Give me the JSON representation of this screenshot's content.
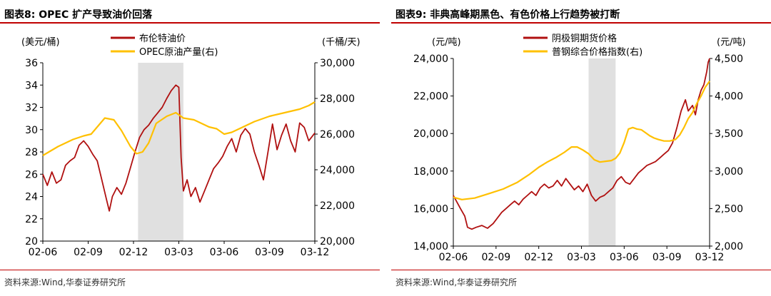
{
  "colors": {
    "accent": "#c00000",
    "series_dark_red": "#b01010",
    "series_gold": "#ffc000",
    "shade": "#e0e0e0"
  },
  "panels": [
    {
      "title": "图表8:  OPEC 扩产导致油价回落",
      "source": "资料来源:Wind,华泰证券研究所"
    },
    {
      "title": "图表9:  非典高峰期黑色、有色价格上行趋势被打断",
      "source": "资料来源:Wind,华泰证券研究所"
    }
  ],
  "chart_data": [
    {
      "type": "line",
      "ylabel_left": "(美元/桶)",
      "ylabel_right": "(千桶/天)",
      "x_ticks": [
        "02-06",
        "02-09",
        "02-12",
        "03-03",
        "03-06",
        "03-09",
        "03-12"
      ],
      "x_range": [
        0,
        18
      ],
      "y_left": {
        "min": 20,
        "max": 36,
        "ticks": [
          "20",
          "22",
          "24",
          "26",
          "28",
          "30",
          "32",
          "34",
          "36"
        ],
        "tick_values": [
          20,
          22,
          24,
          26,
          28,
          30,
          32,
          34,
          36
        ]
      },
      "y_right": {
        "min": 20000,
        "max": 30000,
        "ticks": [
          "20,000",
          "22,000",
          "24,000",
          "26,000",
          "28,000",
          "30,000"
        ],
        "tick_values": [
          20000,
          22000,
          24000,
          26000,
          28000,
          30000
        ]
      },
      "shade": [
        6.3,
        9.3
      ],
      "legend_position": "top-center",
      "series": [
        {
          "name": "布伦特油价",
          "axis": "left",
          "color": "#b01010",
          "points": [
            [
              0,
              26.0
            ],
            [
              0.3,
              25.0
            ],
            [
              0.6,
              26.2
            ],
            [
              0.9,
              25.2
            ],
            [
              1.2,
              25.5
            ],
            [
              1.5,
              26.8
            ],
            [
              1.8,
              27.2
            ],
            [
              2.1,
              27.5
            ],
            [
              2.4,
              28.6
            ],
            [
              2.7,
              29.0
            ],
            [
              3.0,
              28.5
            ],
            [
              3.3,
              27.8
            ],
            [
              3.6,
              27.2
            ],
            [
              3.9,
              25.5
            ],
            [
              4.2,
              23.8
            ],
            [
              4.4,
              22.7
            ],
            [
              4.6,
              24.0
            ],
            [
              4.9,
              24.8
            ],
            [
              5.2,
              24.2
            ],
            [
              5.5,
              25.2
            ],
            [
              5.8,
              26.6
            ],
            [
              6.1,
              28.0
            ],
            [
              6.4,
              29.3
            ],
            [
              6.7,
              30.0
            ],
            [
              7.0,
              30.4
            ],
            [
              7.3,
              31.0
            ],
            [
              7.6,
              31.5
            ],
            [
              7.9,
              32.0
            ],
            [
              8.2,
              32.8
            ],
            [
              8.5,
              33.5
            ],
            [
              8.8,
              34.0
            ],
            [
              9.0,
              33.8
            ],
            [
              9.15,
              27.5
            ],
            [
              9.3,
              24.5
            ],
            [
              9.55,
              25.5
            ],
            [
              9.8,
              24.0
            ],
            [
              10.1,
              24.8
            ],
            [
              10.4,
              23.5
            ],
            [
              10.7,
              24.5
            ],
            [
              11.0,
              25.5
            ],
            [
              11.3,
              26.5
            ],
            [
              11.6,
              27.0
            ],
            [
              11.9,
              27.6
            ],
            [
              12.2,
              28.5
            ],
            [
              12.5,
              29.2
            ],
            [
              12.8,
              28.0
            ],
            [
              13.1,
              29.5
            ],
            [
              13.4,
              30.1
            ],
            [
              13.7,
              29.6
            ],
            [
              14.0,
              28.0
            ],
            [
              14.3,
              26.8
            ],
            [
              14.6,
              25.5
            ],
            [
              14.9,
              28.0
            ],
            [
              15.2,
              30.5
            ],
            [
              15.5,
              28.2
            ],
            [
              15.8,
              29.5
            ],
            [
              16.1,
              30.5
            ],
            [
              16.4,
              29.0
            ],
            [
              16.7,
              28.0
            ],
            [
              17.0,
              30.6
            ],
            [
              17.3,
              30.2
            ],
            [
              17.6,
              29.0
            ],
            [
              18.0,
              29.7
            ]
          ]
        },
        {
          "name": "OPEC原油产量(右)",
          "axis": "right",
          "color": "#ffc000",
          "points": [
            [
              0,
              24800
            ],
            [
              1,
              25300
            ],
            [
              2,
              25700
            ],
            [
              2.7,
              25900
            ],
            [
              3.2,
              26000
            ],
            [
              4.1,
              26900
            ],
            [
              4.7,
              26800
            ],
            [
              5.2,
              26200
            ],
            [
              5.8,
              25300
            ],
            [
              6.2,
              24900
            ],
            [
              6.6,
              25000
            ],
            [
              7.0,
              25500
            ],
            [
              7.5,
              26600
            ],
            [
              8.2,
              27000
            ],
            [
              8.8,
              27200
            ],
            [
              9.3,
              26900
            ],
            [
              10.0,
              26800
            ],
            [
              10.5,
              26600
            ],
            [
              11.0,
              26400
            ],
            [
              11.5,
              26300
            ],
            [
              12.0,
              26000
            ],
            [
              12.5,
              26100
            ],
            [
              13.0,
              26300
            ],
            [
              14.0,
              26700
            ],
            [
              15.0,
              27000
            ],
            [
              16.0,
              27200
            ],
            [
              17.0,
              27400
            ],
            [
              17.6,
              27600
            ],
            [
              18.0,
              27800
            ]
          ]
        }
      ]
    },
    {
      "type": "line",
      "ylabel_left": "(元/吨)",
      "ylabel_right": "(元/吨)",
      "x_ticks": [
        "02-06",
        "02-09",
        "02-12",
        "03-03",
        "03-06",
        "03-09",
        "03-12"
      ],
      "x_range": [
        0,
        18
      ],
      "y_left": {
        "min": 14000,
        "max": 24000,
        "ticks": [
          "14,000",
          "16,000",
          "18,000",
          "20,000",
          "22,000",
          "24,000"
        ],
        "tick_values": [
          14000,
          16000,
          18000,
          20000,
          22000,
          24000
        ]
      },
      "y_right": {
        "min": 2000,
        "max": 4500,
        "ticks": [
          "2,000",
          "2,500",
          "3,000",
          "3,500",
          "4,000",
          "4,500"
        ],
        "tick_values": [
          2000,
          2500,
          3000,
          3500,
          4000,
          4500
        ]
      },
      "shade": [
        9.5,
        11.4
      ],
      "legend_position": "top-center",
      "series": [
        {
          "name": "阴极铜期货价格",
          "axis": "left",
          "color": "#b01010",
          "points": [
            [
              0,
              16700
            ],
            [
              0.5,
              16000
            ],
            [
              0.8,
              15600
            ],
            [
              1.0,
              15000
            ],
            [
              1.3,
              14900
            ],
            [
              1.6,
              15000
            ],
            [
              2.0,
              15100
            ],
            [
              2.4,
              14950
            ],
            [
              2.8,
              15200
            ],
            [
              3.1,
              15500
            ],
            [
              3.4,
              15800
            ],
            [
              3.7,
              16000
            ],
            [
              4.0,
              16200
            ],
            [
              4.3,
              16400
            ],
            [
              4.6,
              16200
            ],
            [
              4.9,
              16500
            ],
            [
              5.2,
              16700
            ],
            [
              5.5,
              16900
            ],
            [
              5.8,
              16700
            ],
            [
              6.1,
              17100
            ],
            [
              6.4,
              17300
            ],
            [
              6.7,
              17100
            ],
            [
              7.0,
              17200
            ],
            [
              7.3,
              17500
            ],
            [
              7.6,
              17200
            ],
            [
              7.9,
              17600
            ],
            [
              8.2,
              17300
            ],
            [
              8.5,
              17000
            ],
            [
              8.8,
              17200
            ],
            [
              9.1,
              16900
            ],
            [
              9.4,
              17300
            ],
            [
              9.7,
              16700
            ],
            [
              10.0,
              16400
            ],
            [
              10.3,
              16600
            ],
            [
              10.6,
              16700
            ],
            [
              10.9,
              16900
            ],
            [
              11.2,
              17100
            ],
            [
              11.5,
              17500
            ],
            [
              11.8,
              17700
            ],
            [
              12.1,
              17400
            ],
            [
              12.4,
              17300
            ],
            [
              12.7,
              17600
            ],
            [
              13.0,
              17900
            ],
            [
              13.3,
              18100
            ],
            [
              13.6,
              18300
            ],
            [
              13.9,
              18400
            ],
            [
              14.2,
              18500
            ],
            [
              14.5,
              18700
            ],
            [
              14.8,
              18900
            ],
            [
              15.1,
              19100
            ],
            [
              15.4,
              19500
            ],
            [
              15.7,
              20300
            ],
            [
              16.0,
              21200
            ],
            [
              16.3,
              21800
            ],
            [
              16.5,
              21200
            ],
            [
              16.8,
              21500
            ],
            [
              17.0,
              21000
            ],
            [
              17.2,
              21800
            ],
            [
              17.4,
              22300
            ],
            [
              17.6,
              22600
            ],
            [
              17.8,
              23300
            ],
            [
              17.9,
              23800
            ],
            [
              18.0,
              24000
            ]
          ]
        },
        {
          "name": "普钢综合价格指数(右)",
          "axis": "right",
          "color": "#ffc000",
          "points": [
            [
              0,
              2650
            ],
            [
              0.6,
              2620
            ],
            [
              1.5,
              2640
            ],
            [
              2.5,
              2700
            ],
            [
              3.5,
              2760
            ],
            [
              4.5,
              2850
            ],
            [
              5.3,
              2950
            ],
            [
              6.0,
              3050
            ],
            [
              6.6,
              3120
            ],
            [
              7.2,
              3180
            ],
            [
              7.8,
              3250
            ],
            [
              8.3,
              3320
            ],
            [
              8.7,
              3320
            ],
            [
              9.1,
              3280
            ],
            [
              9.5,
              3230
            ],
            [
              9.9,
              3150
            ],
            [
              10.3,
              3120
            ],
            [
              10.7,
              3130
            ],
            [
              11.1,
              3140
            ],
            [
              11.4,
              3170
            ],
            [
              11.7,
              3240
            ],
            [
              12.0,
              3380
            ],
            [
              12.3,
              3560
            ],
            [
              12.6,
              3580
            ],
            [
              12.9,
              3560
            ],
            [
              13.2,
              3550
            ],
            [
              13.5,
              3510
            ],
            [
              13.8,
              3470
            ],
            [
              14.1,
              3440
            ],
            [
              14.4,
              3420
            ],
            [
              14.8,
              3400
            ],
            [
              15.2,
              3400
            ],
            [
              15.6,
              3420
            ],
            [
              15.9,
              3480
            ],
            [
              16.2,
              3580
            ],
            [
              16.5,
              3700
            ],
            [
              16.8,
              3780
            ],
            [
              17.1,
              3900
            ],
            [
              17.4,
              4000
            ],
            [
              17.7,
              4120
            ],
            [
              17.9,
              4170
            ],
            [
              18.0,
              4200
            ]
          ]
        }
      ]
    }
  ]
}
